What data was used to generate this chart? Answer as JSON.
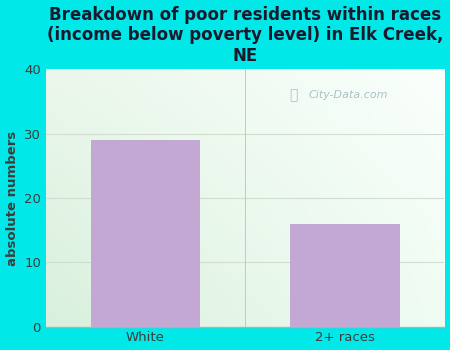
{
  "categories": [
    "White",
    "2+ races"
  ],
  "values": [
    29,
    16
  ],
  "bar_color": "#c4a8d4",
  "title": "Breakdown of poor residents within races\n(income below poverty level) in Elk Creek,\nNE",
  "ylabel": "absolute numbers",
  "ylim": [
    0,
    40
  ],
  "yticks": [
    0,
    10,
    20,
    30,
    40
  ],
  "bg_color": "#00e8e8",
  "title_color": "#1a1a2e",
  "axis_label_color": "#3d3d3d",
  "tick_color": "#3d3d3d",
  "watermark_text": "City-Data.com",
  "watermark_color": "#9ab8c0",
  "title_fontsize": 12,
  "ylabel_fontsize": 9.5,
  "tick_fontsize": 9.5,
  "grid_color": "#d0ddd0",
  "plot_left_color": "#d8ecd0",
  "plot_right_color": "#f0f8f4",
  "plot_top_color": "#e8f5f0"
}
